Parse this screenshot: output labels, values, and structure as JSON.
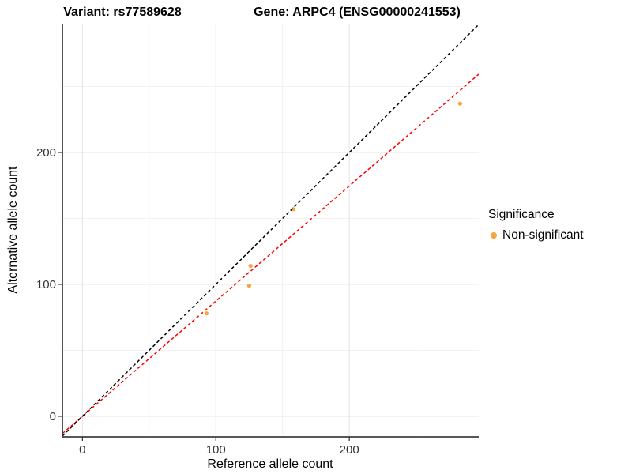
{
  "titles": {
    "variant": "Variant: rs77589628",
    "gene": "Gene: ARPC4 (ENSG00000241553)"
  },
  "legend": {
    "title": "Significance",
    "items": [
      {
        "label": "Non-significant",
        "color": "#F9A43C"
      }
    ]
  },
  "chart_data": {
    "type": "scatter",
    "title": "Variant: rs77589628 — Gene: ARPC4 (ENSG00000241553)",
    "xlabel": "Reference allele count",
    "ylabel": "Alternative allele count",
    "xlim": [
      -15,
      297
    ],
    "ylim": [
      -15.6,
      297.6
    ],
    "x_major_ticks": [
      0,
      100,
      200
    ],
    "y_major_ticks": [
      0,
      100,
      200
    ],
    "x_minor_ticks": [
      50,
      150,
      250
    ],
    "y_minor_ticks": [
      50,
      150,
      250
    ],
    "grid": true,
    "legend_position": "right",
    "series": [
      {
        "name": "Non-significant",
        "color": "#F9A43C",
        "x": [
          93,
          125,
          126,
          158,
          283
        ],
        "y": [
          78,
          99,
          114,
          157,
          237
        ]
      }
    ],
    "reference_lines": [
      {
        "name": "fit-line",
        "slope": 0.873,
        "intercept": 0,
        "color": "#FF0000",
        "style": "dashed"
      },
      {
        "name": "identity-line",
        "slope": 1,
        "intercept": 0,
        "color": "#000000",
        "style": "dashed"
      }
    ],
    "colors": {
      "grid_major": "#E4E4E4",
      "grid_minor": "#F2F2F2",
      "axis_line": "#404040",
      "tick_mark": "#333333"
    }
  }
}
